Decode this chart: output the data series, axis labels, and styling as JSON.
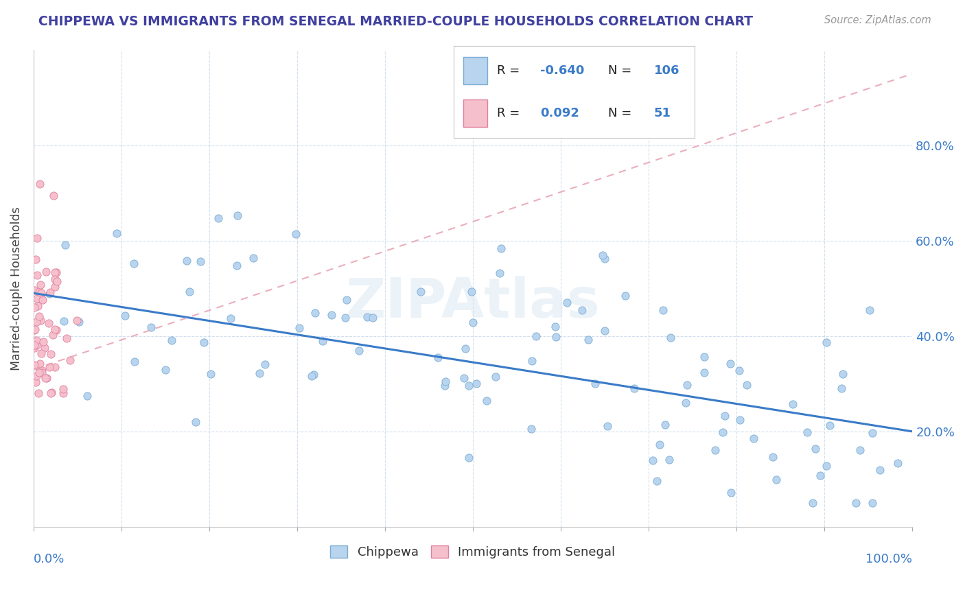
{
  "title": "CHIPPEWA VS IMMIGRANTS FROM SENEGAL MARRIED-COUPLE HOUSEHOLDS CORRELATION CHART",
  "source": "Source: ZipAtlas.com",
  "ylabel": "Married-couple Households",
  "legend_label1": "Chippewa",
  "legend_label2": "Immigrants from Senegal",
  "R1": -0.64,
  "N1": 106,
  "R2": 0.092,
  "N2": 51,
  "color_blue_fill": "#b8d4ee",
  "color_blue_edge": "#7badd4",
  "color_pink_fill": "#f5c0cc",
  "color_pink_edge": "#e080a0",
  "color_line_blue": "#3a7bc8",
  "color_line_pink": "#e8a0b0",
  "color_title": "#4040a0",
  "color_axis_label": "#3a7bc8",
  "watermark": "ZIPAtlas",
  "xlim": [
    0.0,
    1.0
  ],
  "ylim": [
    0.0,
    1.0
  ],
  "yticks": [
    0.2,
    0.4,
    0.6,
    0.8
  ],
  "ytick_labels": [
    "20.0%",
    "40.0%",
    "60.0%",
    "80.0%"
  ],
  "blue_line_x0": 0.0,
  "blue_line_y0": 0.49,
  "blue_line_x1": 1.0,
  "blue_line_y1": 0.2,
  "pink_line_x0": 0.0,
  "pink_line_y0": 0.33,
  "pink_line_x1": 1.0,
  "pink_line_y1": 0.95
}
